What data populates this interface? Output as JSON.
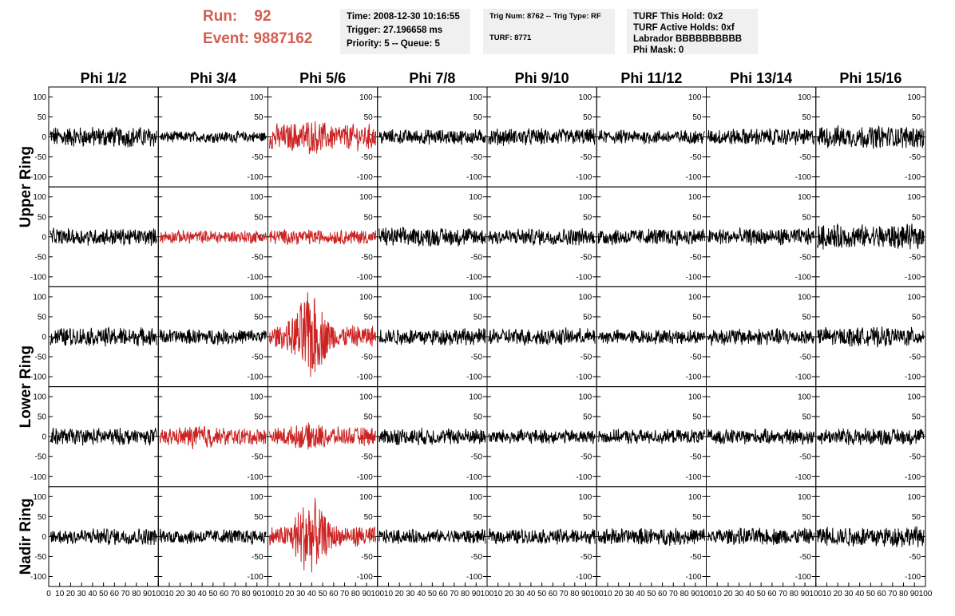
{
  "header": {
    "run_label": "Run:",
    "run_value": "92",
    "event_label": "Event:",
    "event_value": "9887162",
    "time_line": "Time: 2008-12-30 10:16:55",
    "trigger_line": "Trigger: 27.196658 ms",
    "priority_line": "Priority: 5 -- Queue: 5",
    "trig_line": "Trig Num: 8762 -- Trig Type: RF",
    "turf_line": "TURF: 8771",
    "turf_hold_line": "TURF This Hold: 0x2",
    "turf_active_line": "TURF Active Holds: 0xf",
    "labrador_line": "Labrador BBBBBBBBBB",
    "phi_mask_line": "Phi Mask: 0"
  },
  "colors": {
    "highlight": "#cc2222",
    "normal": "#000000",
    "header_text": "#d65c52",
    "box_bg": "#f0f0f0"
  },
  "chart_data": {
    "type": "line",
    "columns": [
      "Phi 1/2",
      "Phi 3/4",
      "Phi 5/6",
      "Phi 7/8",
      "Phi 9/10",
      "Phi 11/12",
      "Phi 13/14",
      "Phi 15/16"
    ],
    "ring_labels": [
      {
        "label": "Upper Ring",
        "rows": [
          0,
          1
        ]
      },
      {
        "label": "Lower Ring",
        "rows": [
          2,
          3
        ]
      },
      {
        "label": "Nadir Ring",
        "rows": [
          4
        ]
      }
    ],
    "ylim": [
      -125,
      125
    ],
    "yticks": [
      -100,
      -50,
      0,
      50,
      100
    ],
    "xlim": [
      0,
      100
    ],
    "xticks": [
      0,
      10,
      20,
      30,
      40,
      50,
      60,
      70,
      80,
      90,
      100
    ],
    "xtick_labels": [
      "0",
      "10",
      "20",
      "30",
      "40",
      "50",
      "60",
      "70",
      "80",
      "90",
      "100"
    ],
    "panels": [
      [
        {
          "amp": 22,
          "highlight": false
        },
        {
          "amp": 12,
          "highlight": false
        },
        {
          "amp": 28,
          "highlight": true,
          "pulse": 1.4
        },
        {
          "amp": 16,
          "highlight": false
        },
        {
          "amp": 18,
          "highlight": false
        },
        {
          "amp": 15,
          "highlight": false
        },
        {
          "amp": 18,
          "highlight": false
        },
        {
          "amp": 24,
          "highlight": false
        }
      ],
      [
        {
          "amp": 18,
          "highlight": false
        },
        {
          "amp": 14,
          "highlight": true
        },
        {
          "amp": 16,
          "highlight": true
        },
        {
          "amp": 20,
          "highlight": false
        },
        {
          "amp": 18,
          "highlight": false
        },
        {
          "amp": 18,
          "highlight": false
        },
        {
          "amp": 18,
          "highlight": false
        },
        {
          "amp": 26,
          "highlight": false
        }
      ],
      [
        {
          "amp": 20,
          "highlight": false
        },
        {
          "amp": 16,
          "highlight": false
        },
        {
          "amp": 24,
          "highlight": true,
          "pulse": 4.5
        },
        {
          "amp": 18,
          "highlight": false
        },
        {
          "amp": 18,
          "highlight": false
        },
        {
          "amp": 15,
          "highlight": false
        },
        {
          "amp": 18,
          "highlight": false
        },
        {
          "amp": 20,
          "highlight": false
        }
      ],
      [
        {
          "amp": 18,
          "highlight": false
        },
        {
          "amp": 18,
          "highlight": true,
          "pulse": 1.6
        },
        {
          "amp": 20,
          "highlight": true,
          "pulse": 1.5
        },
        {
          "amp": 18,
          "highlight": false
        },
        {
          "amp": 15,
          "highlight": false
        },
        {
          "amp": 15,
          "highlight": false
        },
        {
          "amp": 16,
          "highlight": false
        },
        {
          "amp": 18,
          "highlight": false
        }
      ],
      [
        {
          "amp": 18,
          "highlight": false
        },
        {
          "amp": 16,
          "highlight": false
        },
        {
          "amp": 22,
          "highlight": true,
          "pulse": 4.5
        },
        {
          "amp": 15,
          "highlight": false
        },
        {
          "amp": 16,
          "highlight": false
        },
        {
          "amp": 18,
          "highlight": false
        },
        {
          "amp": 18,
          "highlight": false
        },
        {
          "amp": 22,
          "highlight": false
        }
      ]
    ]
  }
}
